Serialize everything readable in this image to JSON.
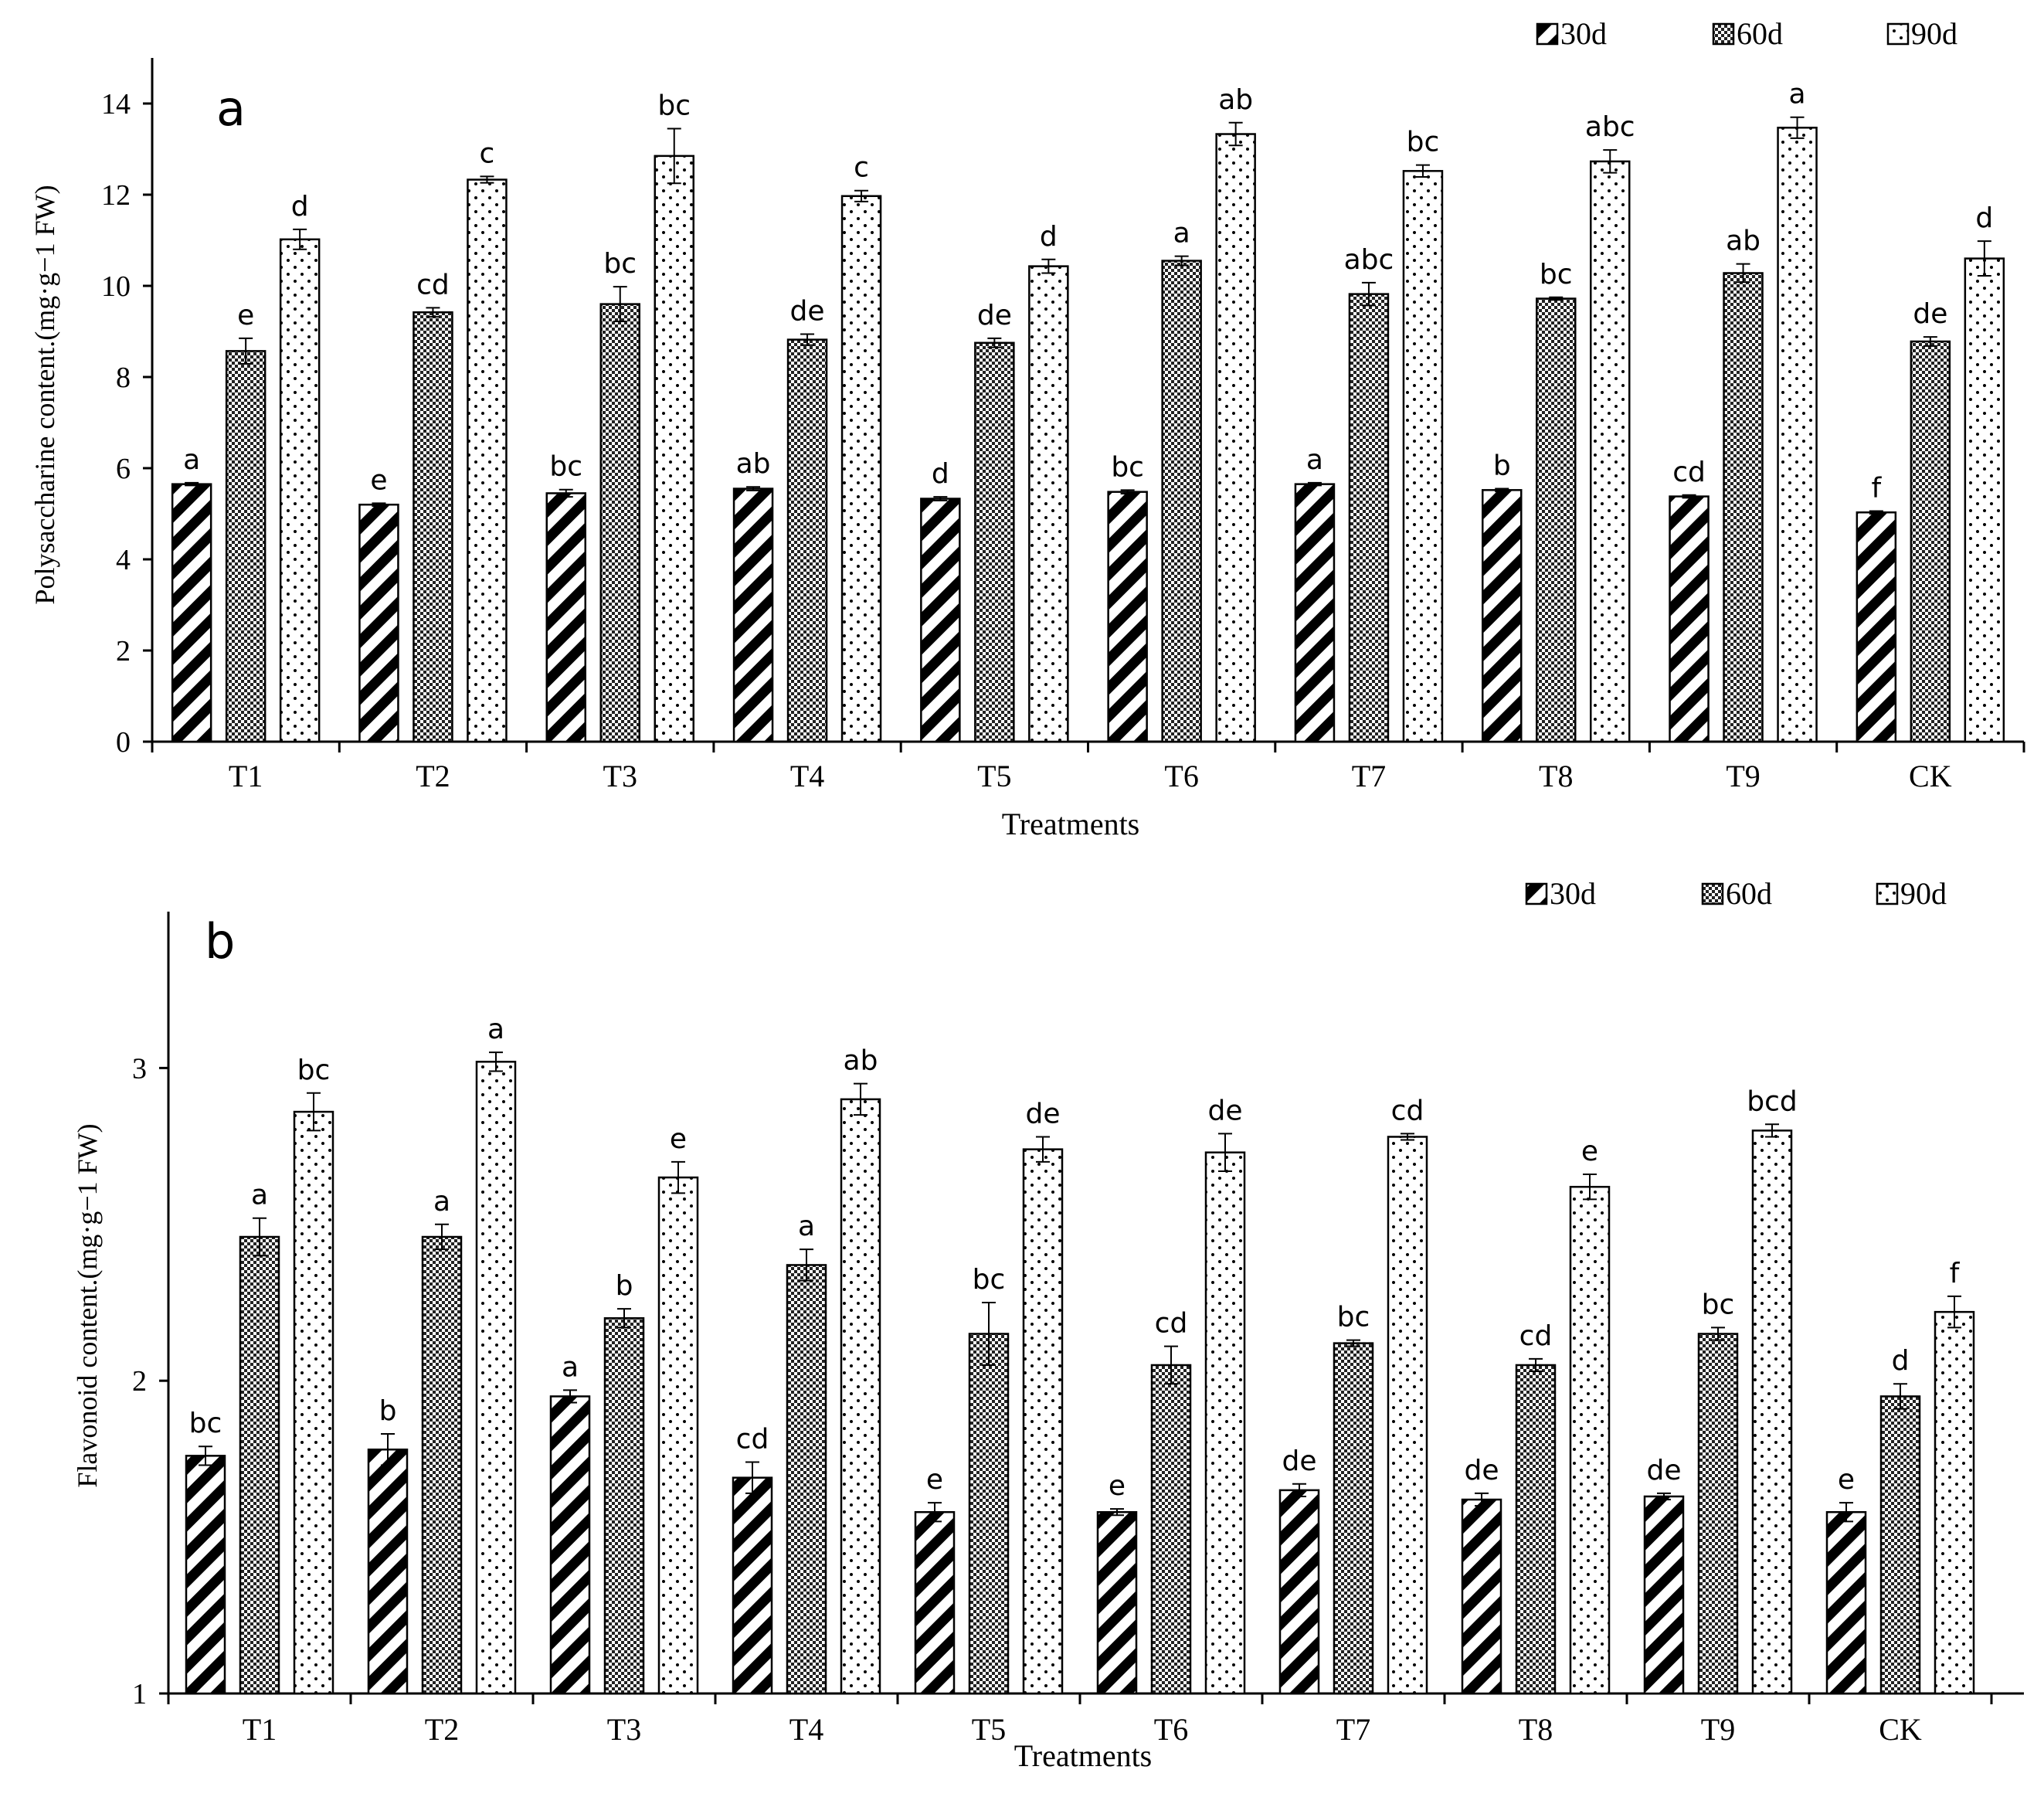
{
  "legend_items": [
    {
      "label": "30d",
      "pattern": "hatch"
    },
    {
      "label": "60d",
      "pattern": "check"
    },
    {
      "label": "90d",
      "pattern": "dots"
    }
  ],
  "chart_data": [
    {
      "type": "bar",
      "panel_label": "a",
      "title": "",
      "xlabel": "Treatments",
      "ylabel": "Polysaccharine content.(mg·g−1 FW)",
      "ylim": [
        0,
        15
      ],
      "yticks": [
        0,
        2,
        4,
        6,
        8,
        10,
        12,
        14
      ],
      "categories": [
        "T1",
        "T2",
        "T3",
        "T4",
        "T5",
        "T6",
        "T7",
        "T8",
        "T9",
        "CK"
      ],
      "series": [
        {
          "name": "30d",
          "values": [
            5.65,
            5.2,
            5.45,
            5.55,
            5.33,
            5.48,
            5.65,
            5.52,
            5.38,
            5.03
          ],
          "errors": [
            0.03,
            0.03,
            0.08,
            0.04,
            0.04,
            0.04,
            0.03,
            0.03,
            0.03,
            0.03
          ],
          "letters": [
            "a",
            "e",
            "bc",
            "ab",
            "d",
            "bc",
            "a",
            "b",
            "cd",
            "f"
          ]
        },
        {
          "name": "60d",
          "values": [
            8.57,
            9.42,
            9.6,
            8.82,
            8.75,
            10.55,
            9.82,
            9.72,
            10.28,
            8.78
          ],
          "errors": [
            0.28,
            0.1,
            0.38,
            0.12,
            0.1,
            0.1,
            0.25,
            0.03,
            0.2,
            0.1
          ],
          "letters": [
            "e",
            "cd",
            "bc",
            "de",
            "de",
            "a",
            "abc",
            "bc",
            "ab",
            "de"
          ]
        },
        {
          "name": "90d",
          "values": [
            11.02,
            12.33,
            12.85,
            11.97,
            10.43,
            13.33,
            12.52,
            12.73,
            13.47,
            10.6
          ],
          "errors": [
            0.22,
            0.07,
            0.6,
            0.12,
            0.15,
            0.25,
            0.13,
            0.25,
            0.23,
            0.38
          ],
          "letters": [
            "d",
            "c",
            "bc",
            "c",
            "d",
            "ab",
            "bc",
            "abc",
            "a",
            "d"
          ]
        }
      ]
    },
    {
      "type": "bar",
      "panel_label": "b",
      "title": "",
      "xlabel": "Treatments",
      "ylabel": "Flavonoid content.(mg·g−1 FW)",
      "ylim": [
        1,
        3.5
      ],
      "yticks": [
        1,
        2,
        3
      ],
      "categories": [
        "T1",
        "T2",
        "T3",
        "T4",
        "T5",
        "T6",
        "T7",
        "T8",
        "T9",
        "CK"
      ],
      "series": [
        {
          "name": "30d",
          "values": [
            1.76,
            1.78,
            1.95,
            1.69,
            1.58,
            1.58,
            1.65,
            1.62,
            1.63,
            1.58
          ],
          "errors": [
            0.03,
            0.05,
            0.02,
            0.05,
            0.03,
            0.01,
            0.02,
            0.02,
            0.01,
            0.03
          ],
          "letters": [
            "bc",
            "b",
            "a",
            "cd",
            "e",
            "e",
            "de",
            "de",
            "de",
            "e"
          ]
        },
        {
          "name": "60d",
          "values": [
            2.46,
            2.46,
            2.2,
            2.37,
            2.15,
            2.05,
            2.12,
            2.05,
            2.15,
            1.95
          ],
          "errors": [
            0.06,
            0.04,
            0.03,
            0.05,
            0.1,
            0.06,
            0.01,
            0.02,
            0.02,
            0.04
          ],
          "letters": [
            "a",
            "a",
            "b",
            "a",
            "bc",
            "cd",
            "bc",
            "cd",
            "bc",
            "d"
          ]
        },
        {
          "name": "90d",
          "values": [
            2.86,
            3.02,
            2.65,
            2.9,
            2.74,
            2.73,
            2.78,
            2.62,
            2.8,
            2.22
          ],
          "errors": [
            0.06,
            0.03,
            0.05,
            0.05,
            0.04,
            0.06,
            0.01,
            0.04,
            0.02,
            0.05
          ],
          "letters": [
            "bc",
            "a",
            "e",
            "ab",
            "de",
            "de",
            "cd",
            "e",
            "bcd",
            "f"
          ]
        }
      ]
    }
  ]
}
